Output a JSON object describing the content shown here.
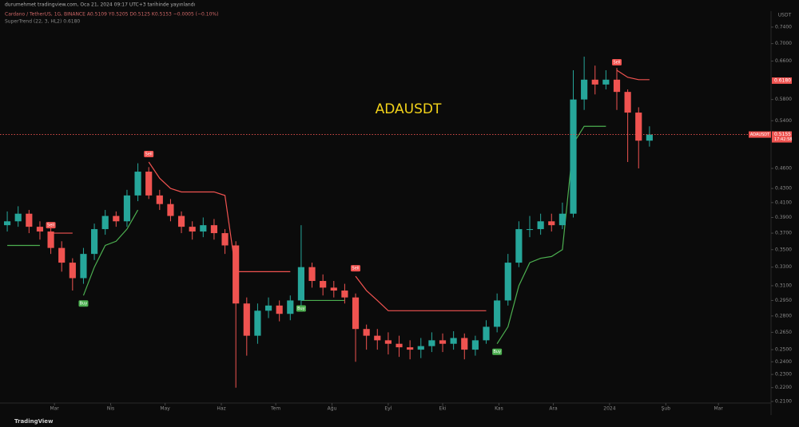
{
  "chart_data": {
    "type": "candlestick",
    "title": "ADAUSDT",
    "published": "durumehmet tradingview.com, Oca 21, 2024 09:17 UTC+3 tarihinde yayınlandı",
    "legend_symbol": "Cardano / TetherUS, 1G, BINANCE  A0.5109  Y0.5205  D0.5125  K0.5153  −0.0005 (−0.10%)",
    "legend_indicator": "SuperTrend (22, 3, HL2)  0.6180",
    "currency": "USDT",
    "brand": "TradingView",
    "symbol_tag": "ADAUSDT",
    "last_price": {
      "value": 0.5155,
      "label": "0.5155"
    },
    "countdown": "17:42:58",
    "indicator_price": {
      "value": 0.618,
      "label": "0.6180"
    },
    "log_scale": true,
    "up_color": "#26a69a",
    "down_color": "#ef5350",
    "x": [
      -26,
      -20,
      -14,
      -8,
      -2,
      4,
      10,
      16,
      22,
      28,
      34,
      40,
      46,
      52,
      58,
      64,
      70,
      76,
      82,
      88,
      94,
      100,
      106,
      112,
      118,
      124,
      130,
      136,
      142,
      148,
      154,
      160,
      166,
      172,
      178,
      184,
      190,
      196,
      202,
      208,
      214,
      220,
      226,
      232,
      238,
      244,
      250,
      256,
      262,
      268,
      274,
      280,
      286,
      292,
      298,
      304,
      310,
      316,
      322,
      328
    ],
    "open": [
      0.38,
      0.385,
      0.395,
      0.378,
      0.372,
      0.352,
      0.335,
      0.318,
      0.345,
      0.375,
      0.392,
      0.385,
      0.42,
      0.455,
      0.42,
      0.408,
      0.392,
      0.378,
      0.372,
      0.38,
      0.37,
      0.355,
      0.292,
      0.262,
      0.285,
      0.29,
      0.282,
      0.295,
      0.33,
      0.315,
      0.308,
      0.305,
      0.298,
      0.268,
      0.262,
      0.258,
      0.255,
      0.252,
      0.25,
      0.253,
      0.258,
      0.255,
      0.26,
      0.25,
      0.258,
      0.27,
      0.295,
      0.335,
      0.375,
      0.375,
      0.385,
      0.38,
      0.395,
      0.58,
      0.62,
      0.61,
      0.62,
      0.595,
      0.555,
      0.505
    ],
    "high": [
      0.398,
      0.405,
      0.4,
      0.385,
      0.378,
      0.36,
      0.34,
      0.352,
      0.382,
      0.4,
      0.398,
      0.428,
      0.468,
      0.462,
      0.428,
      0.415,
      0.398,
      0.385,
      0.39,
      0.388,
      0.375,
      0.36,
      0.298,
      0.292,
      0.298,
      0.295,
      0.3,
      0.38,
      0.335,
      0.322,
      0.315,
      0.312,
      0.302,
      0.272,
      0.268,
      0.265,
      0.262,
      0.258,
      0.26,
      0.265,
      0.264,
      0.266,
      0.264,
      0.262,
      0.276,
      0.302,
      0.345,
      0.385,
      0.392,
      0.395,
      0.395,
      0.41,
      0.64,
      0.67,
      0.65,
      0.64,
      0.645,
      0.6,
      0.565,
      0.53
    ],
    "low": [
      0.372,
      0.378,
      0.37,
      0.362,
      0.345,
      0.325,
      0.305,
      0.312,
      0.338,
      0.368,
      0.378,
      0.378,
      0.412,
      0.415,
      0.4,
      0.385,
      0.37,
      0.362,
      0.365,
      0.362,
      0.345,
      0.22,
      0.245,
      0.255,
      0.278,
      0.275,
      0.276,
      0.29,
      0.308,
      0.3,
      0.298,
      0.292,
      0.24,
      0.25,
      0.25,
      0.246,
      0.244,
      0.242,
      0.243,
      0.248,
      0.248,
      0.25,
      0.242,
      0.245,
      0.255,
      0.265,
      0.29,
      0.33,
      0.365,
      0.368,
      0.372,
      0.375,
      0.39,
      0.56,
      0.59,
      0.6,
      0.56,
      0.47,
      0.46,
      0.495
    ],
    "close": [
      0.385,
      0.395,
      0.378,
      0.372,
      0.352,
      0.335,
      0.318,
      0.345,
      0.375,
      0.392,
      0.385,
      0.42,
      0.455,
      0.42,
      0.408,
      0.392,
      0.378,
      0.372,
      0.38,
      0.37,
      0.355,
      0.292,
      0.262,
      0.285,
      0.29,
      0.282,
      0.295,
      0.33,
      0.315,
      0.308,
      0.305,
      0.298,
      0.268,
      0.262,
      0.258,
      0.255,
      0.252,
      0.25,
      0.253,
      0.258,
      0.255,
      0.26,
      0.25,
      0.258,
      0.27,
      0.295,
      0.335,
      0.375,
      0.375,
      0.385,
      0.38,
      0.395,
      0.58,
      0.62,
      0.61,
      0.62,
      0.595,
      0.555,
      0.505,
      0.5155
    ],
    "supertrend_up": {
      "color": "#4caf50",
      "values": [
        0.355,
        0.355,
        0.355,
        0.355,
        null,
        null,
        null,
        0.3,
        0.33,
        0.355,
        0.36,
        0.375,
        0.4,
        null,
        null,
        null,
        null,
        null,
        null,
        null,
        null,
        null,
        null,
        null,
        null,
        null,
        null,
        0.295,
        0.295,
        0.295,
        0.295,
        0.295,
        null,
        null,
        null,
        null,
        null,
        null,
        null,
        null,
        null,
        null,
        null,
        null,
        null,
        0.255,
        0.27,
        0.31,
        0.335,
        0.34,
        0.342,
        0.35,
        0.5,
        0.53,
        0.53,
        0.53,
        null,
        null,
        null,
        null
      ]
    },
    "supertrend_down": {
      "color": "#f05350",
      "values": [
        null,
        null,
        null,
        null,
        0.37,
        0.37,
        0.37,
        null,
        null,
        null,
        null,
        null,
        null,
        0.47,
        0.445,
        0.43,
        0.425,
        0.425,
        0.425,
        0.425,
        0.42,
        0.325,
        0.325,
        0.325,
        0.325,
        0.325,
        0.325,
        null,
        null,
        null,
        null,
        null,
        0.32,
        0.305,
        0.295,
        0.285,
        0.285,
        0.285,
        0.285,
        0.285,
        0.285,
        0.285,
        0.285,
        0.285,
        0.285,
        null,
        null,
        null,
        null,
        null,
        null,
        null,
        null,
        null,
        null,
        null,
        0.64,
        0.625,
        0.62,
        0.62
      ]
    },
    "signals": [
      {
        "text": "Sell",
        "x": -2,
        "y": 0.37
      },
      {
        "text": "Buy",
        "x": 16,
        "y": 0.3
      },
      {
        "text": "Sell",
        "x": 52,
        "y": 0.47
      },
      {
        "text": "Buy",
        "x": 136,
        "y": 0.295
      },
      {
        "text": "Sell",
        "x": 166,
        "y": 0.32
      },
      {
        "text": "Buy",
        "x": 244,
        "y": 0.255
      },
      {
        "text": "Sell",
        "x": 310,
        "y": 0.64
      }
    ],
    "xlim": [
      -30,
      395
    ],
    "xticks": [
      {
        "value": 0,
        "label": "Mar"
      },
      {
        "value": 31,
        "label": "Nis"
      },
      {
        "value": 61,
        "label": "May"
      },
      {
        "value": 92,
        "label": "Haz"
      },
      {
        "value": 122,
        "label": "Tem"
      },
      {
        "value": 153,
        "label": "Ağu"
      },
      {
        "value": 184,
        "label": "Eyl"
      },
      {
        "value": 214,
        "label": "Eki"
      },
      {
        "value": 245,
        "label": "Kas"
      },
      {
        "value": 275,
        "label": "Ara"
      },
      {
        "value": 306,
        "label": "2024"
      },
      {
        "value": 337,
        "label": "Şub"
      },
      {
        "value": 366,
        "label": "Mar"
      }
    ],
    "ylim": [
      0.205,
      0.76
    ],
    "yticks": [
      {
        "value": 0.74,
        "label": "0.7400"
      },
      {
        "value": 0.7,
        "label": "0.7000"
      },
      {
        "value": 0.66,
        "label": "0.6600"
      },
      {
        "value": 0.58,
        "label": "0.5800"
      },
      {
        "value": 0.54,
        "label": "0.5400"
      },
      {
        "value": 0.46,
        "label": "0.4600"
      },
      {
        "value": 0.43,
        "label": "0.4300"
      },
      {
        "value": 0.41,
        "label": "0.4100"
      },
      {
        "value": 0.39,
        "label": "0.3900"
      },
      {
        "value": 0.37,
        "label": "0.3700"
      },
      {
        "value": 0.35,
        "label": "0.3500"
      },
      {
        "value": 0.33,
        "label": "0.3300"
      },
      {
        "value": 0.31,
        "label": "0.3100"
      },
      {
        "value": 0.295,
        "label": "0.2950"
      },
      {
        "value": 0.28,
        "label": "0.2800"
      },
      {
        "value": 0.265,
        "label": "0.2650"
      },
      {
        "value": 0.25,
        "label": "0.2500"
      },
      {
        "value": 0.24,
        "label": "0.2400"
      },
      {
        "value": 0.23,
        "label": "0.2300"
      },
      {
        "value": 0.22,
        "label": "0.2200"
      },
      {
        "value": 0.21,
        "label": "0.2100"
      }
    ]
  }
}
